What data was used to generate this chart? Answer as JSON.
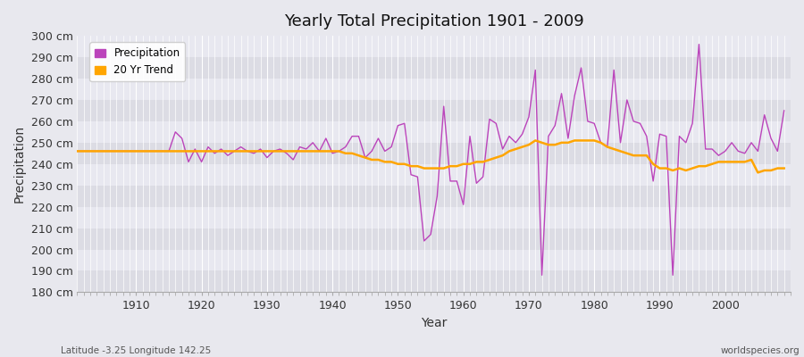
{
  "title": "Yearly Total Precipitation 1901 - 2009",
  "xlabel": "Year",
  "ylabel": "Precipitation",
  "subtitle_left": "Latitude -3.25 Longitude 142.25",
  "subtitle_right": "worldspecies.org",
  "ylim": [
    180,
    300
  ],
  "yticks": [
    180,
    190,
    200,
    210,
    220,
    230,
    240,
    250,
    260,
    270,
    280,
    290,
    300
  ],
  "ytick_labels": [
    "180 cm",
    "190 cm",
    "200 cm",
    "210 cm",
    "220 cm",
    "230 cm",
    "240 cm",
    "250 cm",
    "260 cm",
    "270 cm",
    "280 cm",
    "290 cm",
    "300 cm"
  ],
  "xlim": [
    1901,
    2010
  ],
  "xticks": [
    1910,
    1920,
    1930,
    1940,
    1950,
    1960,
    1970,
    1980,
    1990,
    2000
  ],
  "precip_color": "#BB44BB",
  "trend_color": "#FFA500",
  "bg_color": "#E8E8EE",
  "band_colors": [
    "#DCDCE4",
    "#E8E8F0"
  ],
  "grid_color": "#FFFFFF",
  "legend_bg": "#FFFFFF",
  "precip_data": {
    "years": [
      1901,
      1902,
      1903,
      1904,
      1905,
      1906,
      1907,
      1908,
      1909,
      1910,
      1911,
      1912,
      1913,
      1914,
      1915,
      1916,
      1917,
      1918,
      1919,
      1920,
      1921,
      1922,
      1923,
      1924,
      1925,
      1926,
      1927,
      1928,
      1929,
      1930,
      1931,
      1932,
      1933,
      1934,
      1935,
      1936,
      1937,
      1938,
      1939,
      1940,
      1941,
      1942,
      1943,
      1944,
      1945,
      1946,
      1947,
      1948,
      1949,
      1950,
      1951,
      1952,
      1953,
      1954,
      1955,
      1956,
      1957,
      1958,
      1959,
      1960,
      1961,
      1962,
      1963,
      1964,
      1965,
      1966,
      1967,
      1968,
      1969,
      1970,
      1971,
      1972,
      1973,
      1974,
      1975,
      1976,
      1977,
      1978,
      1979,
      1980,
      1981,
      1982,
      1983,
      1984,
      1985,
      1986,
      1987,
      1988,
      1989,
      1990,
      1991,
      1992,
      1993,
      1994,
      1995,
      1996,
      1997,
      1998,
      1999,
      2000,
      2001,
      2002,
      2003,
      2004,
      2005,
      2006,
      2007,
      2008,
      2009
    ],
    "values": [
      246,
      246,
      246,
      246,
      246,
      246,
      246,
      246,
      246,
      246,
      246,
      246,
      246,
      246,
      246,
      255,
      252,
      241,
      247,
      241,
      248,
      245,
      247,
      244,
      246,
      248,
      246,
      245,
      247,
      243,
      246,
      247,
      245,
      242,
      248,
      247,
      250,
      246,
      252,
      245,
      246,
      248,
      253,
      253,
      243,
      246,
      252,
      246,
      248,
      258,
      259,
      235,
      234,
      204,
      207,
      225,
      267,
      232,
      232,
      221,
      253,
      231,
      234,
      261,
      259,
      247,
      253,
      250,
      254,
      262,
      284,
      188,
      253,
      258,
      273,
      252,
      272,
      285,
      260,
      259,
      250,
      248,
      284,
      250,
      270,
      260,
      259,
      253,
      232,
      254,
      253,
      188,
      253,
      250,
      259,
      296,
      247,
      247,
      244,
      246,
      250,
      246,
      245,
      250,
      246,
      263,
      252,
      246,
      265
    ]
  },
  "trend_data": {
    "years": [
      1901,
      1902,
      1903,
      1904,
      1905,
      1906,
      1907,
      1908,
      1909,
      1910,
      1911,
      1912,
      1913,
      1914,
      1915,
      1916,
      1917,
      1918,
      1919,
      1920,
      1921,
      1922,
      1923,
      1924,
      1925,
      1926,
      1927,
      1928,
      1929,
      1930,
      1931,
      1932,
      1933,
      1934,
      1935,
      1936,
      1937,
      1938,
      1939,
      1940,
      1941,
      1942,
      1943,
      1944,
      1945,
      1946,
      1947,
      1948,
      1949,
      1950,
      1951,
      1952,
      1953,
      1954,
      1955,
      1956,
      1957,
      1958,
      1959,
      1960,
      1961,
      1962,
      1963,
      1964,
      1965,
      1966,
      1967,
      1968,
      1969,
      1970,
      1971,
      1972,
      1973,
      1974,
      1975,
      1976,
      1977,
      1978,
      1979,
      1980,
      1981,
      1982,
      1983,
      1984,
      1985,
      1986,
      1987,
      1988,
      1989,
      1990,
      1991,
      1992,
      1993,
      1994,
      1995,
      1996,
      1997,
      1998,
      1999,
      2000,
      2001,
      2002,
      2003,
      2004,
      2005,
      2006,
      2007,
      2008,
      2009
    ],
    "values": [
      246,
      246,
      246,
      246,
      246,
      246,
      246,
      246,
      246,
      246,
      246,
      246,
      246,
      246,
      246,
      246,
      246,
      246,
      246,
      246,
      246,
      246,
      246,
      246,
      246,
      246,
      246,
      246,
      246,
      246,
      246,
      246,
      246,
      246,
      246,
      246,
      246,
      246,
      246,
      246,
      246,
      245,
      245,
      244,
      243,
      242,
      242,
      241,
      241,
      240,
      240,
      239,
      239,
      238,
      238,
      238,
      238,
      239,
      239,
      240,
      240,
      241,
      241,
      242,
      243,
      244,
      246,
      247,
      248,
      249,
      251,
      250,
      249,
      249,
      250,
      250,
      251,
      251,
      251,
      251,
      250,
      248,
      247,
      246,
      245,
      244,
      244,
      244,
      240,
      238,
      238,
      237,
      238,
      237,
      238,
      239,
      239,
      240,
      241,
      241,
      241,
      241,
      241,
      242,
      236,
      237,
      237,
      238,
      238
    ]
  }
}
